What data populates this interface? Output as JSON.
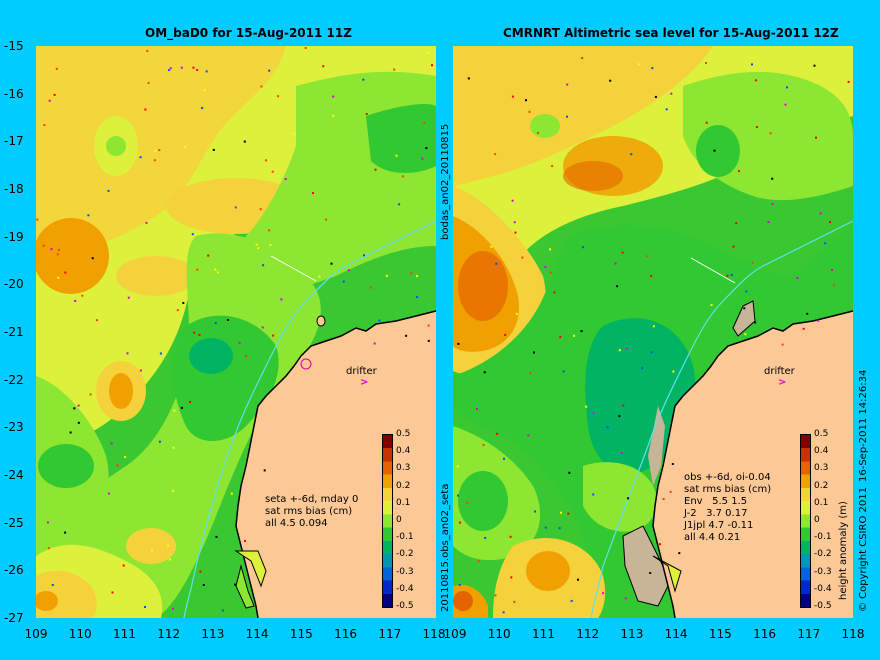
{
  "left_title": "OM_baD0 for 15-Aug-2011 11Z",
  "right_title": "CMRNRT Altimetric sea level  for 15-Aug-2011 12Z",
  "lat_ticks": [
    "-15",
    "-16",
    "-17",
    "-18",
    "-19",
    "-20",
    "-21",
    "-22",
    "-23",
    "-24",
    "-25",
    "-26",
    "-27"
  ],
  "lon_ticks": [
    "109",
    "110",
    "111",
    "112",
    "113",
    "114",
    "115",
    "116",
    "117",
    "118"
  ],
  "colorbar": {
    "label": "height anomaly (m)",
    "ticks": [
      "0.5",
      "0.4",
      "0.3",
      "0.2",
      "0.1",
      "0",
      "-0.1",
      "-0.2",
      "-0.3",
      "-0.4",
      "-0.5"
    ],
    "colors": [
      "#800000",
      "#c83200",
      "#e66400",
      "#f0a000",
      "#f5d23c",
      "#dcf03c",
      "#8ce632",
      "#32c832",
      "#00b464",
      "#0096b4",
      "#0064dc",
      "#0028c8",
      "#000080"
    ]
  },
  "left_info": "seta +-6d, mday 0\nsat rms bias (cm)\nall 4.5 0.094",
  "right_info": "obs +-6d, oi-0.04\nsat rms bias (cm)\nEnv   5.5 1.5\nJ-2   3.7 0.17\nJ1jpl 4.7 -0.11\nall 4.4 0.21",
  "drifter_label": "drifter",
  "mid_top_text": "bodas_an02_20110815",
  "mid_bottom_text": "20110815.obs_an02_seta",
  "side_text_1": "16-Sep-2011 14:26:34",
  "side_text_2": "© Copyright CSIRO 2011"
}
